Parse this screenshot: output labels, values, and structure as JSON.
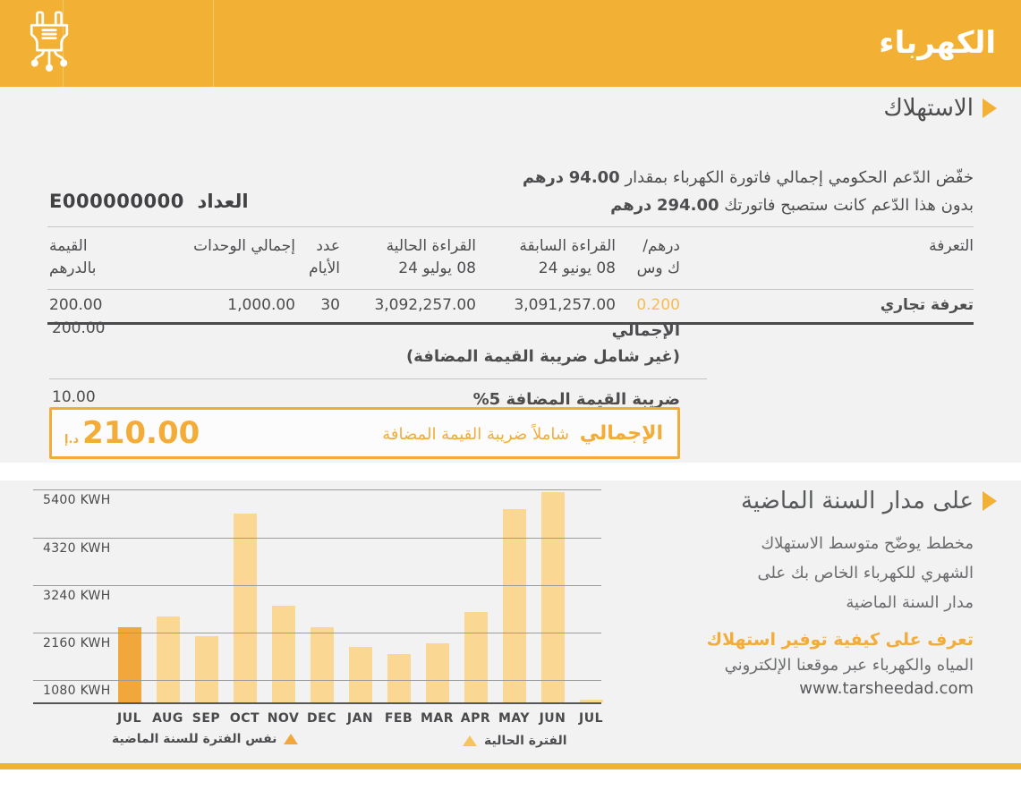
{
  "theme": {
    "brand_yellow": "#F2B134",
    "accent_orange": "#F3AC38",
    "light_bar": "#FAD893",
    "dark_bar": "#F1A73B",
    "rate_orange": "#F6BD55",
    "text_dark": "#4D4D4F",
    "section_bg": "#F2F2F3"
  },
  "header": {
    "title": "الكهرباء"
  },
  "consumption": {
    "section_title": "الاستهلاك",
    "subsidy": {
      "line1_text": "خفّض الدّعم الحكومي إجمالي فاتورة الكهرباء بمقدار",
      "line1_amount": "94.00",
      "line1_unit": "درهم",
      "line2_text": "بدون هذا الدّعم كانت ستصبح فاتورتك",
      "line2_amount": "294.00",
      "line2_unit": "درهم"
    },
    "meter": {
      "label": "العداد",
      "number": "E000000000"
    },
    "table": {
      "headers": {
        "tariff": "التعرفة",
        "rate_l1": "درهم/",
        "rate_l2": "ك وس",
        "prev_l1": "القراءة السابقة",
        "prev_l2": "08 يونيو 24",
        "curr_l1": "القراءة الحالية",
        "curr_l2": "08 يوليو 24",
        "days_l1": "عدد",
        "days_l2": "الأيام",
        "units": "إجمالي الوحدات",
        "value_l1": "القيمة",
        "value_l2": "بالدرهم"
      },
      "row": {
        "tariff": "تعرفة تجاري",
        "rate": "0.200",
        "prev_reading": "3,091,257.00",
        "curr_reading": "3,092,257.00",
        "days": "30",
        "total_units": "1,000.00",
        "value": "200.00"
      }
    },
    "totals": {
      "subtotal_label": "الإجمالي",
      "subtotal_note": "(غير شامل ضريبة القيمة المضافة)",
      "subtotal_value": "200.00",
      "vat_label": "ضريبة القيمة المضافة 5%",
      "vat_value": "10.00",
      "grand_label_bold": "الإجمالي",
      "grand_label_rest": "شاملاً ضريبة القيمة المضافة",
      "grand_value": "210.00",
      "grand_currency": "د.إ"
    }
  },
  "year_panel": {
    "section_title": "على مدار السنة الماضية",
    "description_lines": [
      "مخطط يوضّح متوسط الاستهلاك",
      "الشهري للكهرباء الخاص بك على",
      "مدار السنة الماضية"
    ],
    "tip_bold": "تعرف على كيفية توفير استهلاك",
    "tip_line2": "المياه والكهرباء عبر موقعنا الإلكتروني",
    "website": "www.tarsheedad.com"
  },
  "chart_data": {
    "type": "bar",
    "title": "",
    "unit": "KWH",
    "categories": [
      "JUL",
      "AUG",
      "SEP",
      "OCT",
      "NOV",
      "DEC",
      "JAN",
      "FEB",
      "MAR",
      "APR",
      "MAY",
      "JUN",
      "JUL"
    ],
    "values": [
      2250,
      2500,
      2050,
      4850,
      2750,
      2250,
      1800,
      1650,
      1900,
      2600,
      4950,
      5350,
      600
    ],
    "highlight_index": 0,
    "ylim": [
      540,
      5450
    ],
    "gridlines": [
      1080,
      2160,
      3240,
      4320,
      5400
    ],
    "tick_labels": [
      "1080 KWH",
      "2160 KWH",
      "3240 KWH",
      "4320 KWH",
      "5400 KWH"
    ],
    "legend_previous": "نفس الفترة للسنة الماضية",
    "legend_current": "الفترة الحالية",
    "grid": true,
    "legend_position": "bottom",
    "xlabel": "",
    "ylabel": ""
  }
}
